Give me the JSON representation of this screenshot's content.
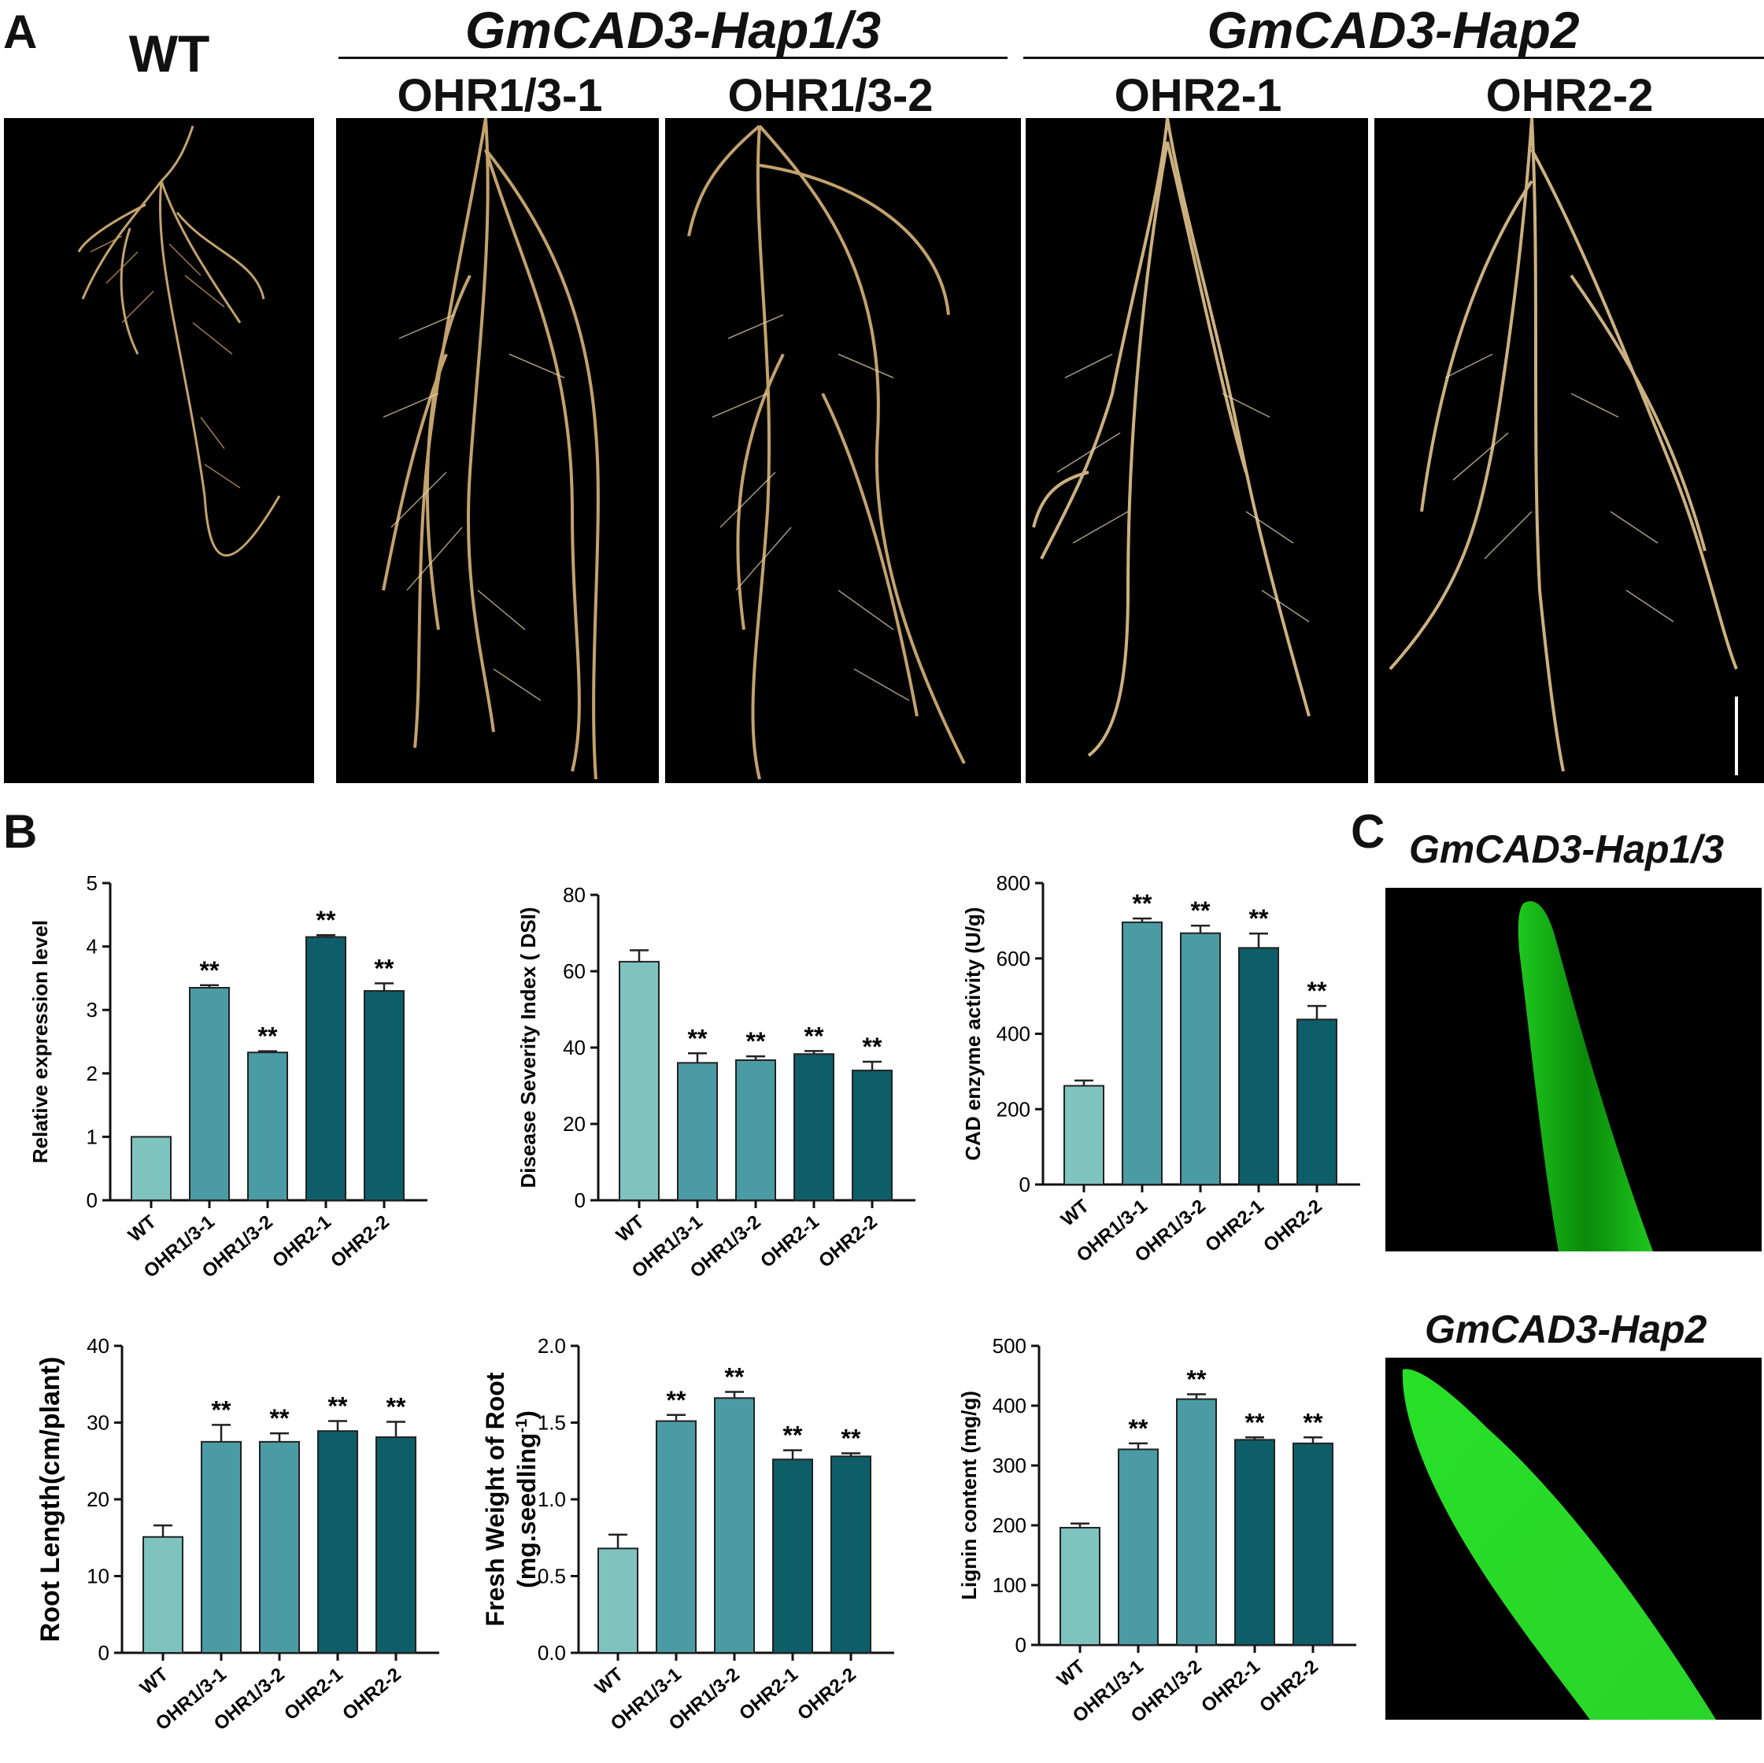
{
  "panels": {
    "a": "A",
    "b": "B",
    "c": "C"
  },
  "photos_header": {
    "wt": "WT",
    "group1": "GmCAD3-Hap1/3",
    "group2": "GmCAD3-Hap2",
    "lines": [
      "OHR1/3-1",
      "OHR1/3-2",
      "OHR2-1",
      "OHR2-2"
    ]
  },
  "panel_c": {
    "top_title": "GmCAD3-Hap1/3",
    "bottom_title": "GmCAD3-Hap2"
  },
  "colors": {
    "wt": "#7fc3bf",
    "hap13": "#4a9ba4",
    "hap2": "#0d5e69",
    "fluor": "#22dd22",
    "root": "#d9b47a"
  },
  "significance": "**",
  "chart_data": [
    {
      "type": "bar",
      "categories": [
        "WT",
        "OHR1/3-1",
        "OHR1/3-2",
        "OHR2-1",
        "OHR2-2"
      ],
      "values": [
        1.0,
        3.35,
        2.33,
        4.15,
        3.3
      ],
      "errors": [
        0,
        0.04,
        0.02,
        0.03,
        0.12
      ],
      "significant": [
        false,
        true,
        true,
        true,
        true
      ],
      "ylabel": "Relative expression level",
      "ylim": [
        0,
        5
      ],
      "yticks": [
        "0",
        "1",
        "2",
        "3",
        "4",
        "5"
      ]
    },
    {
      "type": "bar",
      "categories": [
        "WT",
        "OHR1/3-1",
        "OHR1/3-2",
        "OHR2-1",
        "OHR2-2"
      ],
      "values": [
        62.5,
        36,
        36.7,
        38.3,
        34
      ],
      "errors": [
        3,
        2.5,
        1,
        0.8,
        2.3
      ],
      "significant": [
        false,
        true,
        true,
        true,
        true
      ],
      "ylabel": "Disease Severity Index ( DSI)",
      "ylim": [
        0,
        80
      ],
      "yticks": [
        "0",
        "20",
        "40",
        "60",
        "80"
      ]
    },
    {
      "type": "bar",
      "categories": [
        "WT",
        "OHR1/3-1",
        "OHR1/3-2",
        "OHR2-1",
        "OHR2-2"
      ],
      "values": [
        262,
        696,
        667,
        628,
        438
      ],
      "errors": [
        14,
        10,
        20,
        38,
        36
      ],
      "significant": [
        false,
        true,
        true,
        true,
        true
      ],
      "ylabel": "CAD enzyme activity (U/g)",
      "ylim": [
        0,
        800
      ],
      "yticks": [
        "0",
        "200",
        "400",
        "600",
        "800"
      ]
    },
    {
      "type": "bar",
      "categories": [
        "WT",
        "OHR1/3-1",
        "OHR1/3-2",
        "OHR2-1",
        "OHR2-2"
      ],
      "values": [
        15.1,
        27.5,
        27.5,
        28.9,
        28.1
      ],
      "errors": [
        1.5,
        2.2,
        1.1,
        1.3,
        2.0
      ],
      "significant": [
        false,
        true,
        true,
        true,
        true
      ],
      "ylabel": "Root Length(cm/plant)",
      "ylim": [
        0,
        40
      ],
      "yticks": [
        "0",
        "10",
        "20",
        "30",
        "40"
      ]
    },
    {
      "type": "bar",
      "categories": [
        "WT",
        "OHR1/3-1",
        "OHR1/3-2",
        "OHR2-1",
        "OHR2-2"
      ],
      "values": [
        0.68,
        1.51,
        1.66,
        1.26,
        1.28
      ],
      "errors": [
        0.09,
        0.04,
        0.04,
        0.06,
        0.02
      ],
      "significant": [
        false,
        true,
        true,
        true,
        true
      ],
      "ylabel": "Fresh Weight of Root",
      "ylabel2": "(mg.seedling",
      "ylabel2_sup": "-1",
      "ylabel2_end": ")",
      "ylim": [
        0,
        2.0
      ],
      "yticks": [
        "0.0",
        "0.5",
        "1.0",
        "1.5",
        "2.0"
      ]
    },
    {
      "type": "bar",
      "categories": [
        "WT",
        "OHR1/3-1",
        "OHR1/3-2",
        "OHR2-1",
        "OHR2-2"
      ],
      "values": [
        196,
        327,
        411,
        343,
        337
      ],
      "errors": [
        7,
        10,
        8,
        4,
        10
      ],
      "significant": [
        false,
        true,
        true,
        true,
        true
      ],
      "ylabel": "Lignin content (mg/g)",
      "ylim": [
        0,
        500
      ],
      "yticks": [
        "0",
        "100",
        "200",
        "300",
        "400",
        "500"
      ]
    }
  ]
}
